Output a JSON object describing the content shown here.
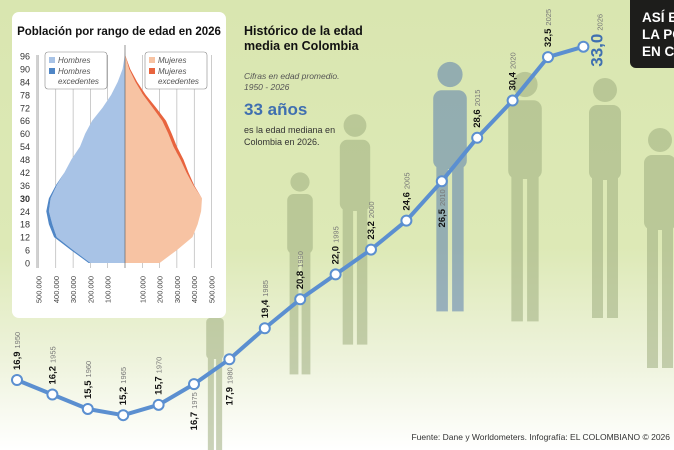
{
  "info": {
    "title": "Histórico de la edad media en Colombia",
    "subtitle": "Cifras en edad promedio. 1950 - 2026",
    "highlight": "33 años",
    "highlight_desc": "es la edad mediana en Colombia en 2026."
  },
  "corner_title": [
    "ASÍ E",
    "LA PO",
    "EN C"
  ],
  "source": "Fuente: Dane y Worldometers. Infografía: EL COLOMBIANO © 2026",
  "colors": {
    "line": "#5b8fd0",
    "male": "#a8c3e6",
    "male_excess": "#4f86c6",
    "female": "#f7c3a3",
    "female_excess": "#e8643e",
    "corner_bg": "#1d1d1b",
    "highlight": "#3f6fb0"
  },
  "chart_data": [
    {
      "type": "bar",
      "subtype": "population-pyramid",
      "title": "Población por rango de edad en 2026",
      "age_ticks": [
        "0",
        "6",
        "12",
        "18",
        "24",
        "30",
        "36",
        "42",
        "48",
        "54",
        "60",
        "66",
        "72",
        "78",
        "84",
        "90",
        "96"
      ],
      "x_tick_labels": [
        "500.000",
        "400.000",
        "300.000",
        "200.000",
        "100.000",
        "100.000",
        "200.000",
        "300.000",
        "400.000",
        "500.000"
      ],
      "xlim": [
        -500000,
        500000
      ],
      "legend": [
        "Hombres",
        "Hombres excedentes",
        "Mujeres",
        "Mujeres excedentes"
      ],
      "ages": [
        0,
        6,
        12,
        18,
        24,
        30,
        36,
        42,
        48,
        54,
        60,
        66,
        72,
        78,
        84,
        90,
        96
      ],
      "series": [
        {
          "name": "Hombres",
          "values": [
            200000,
            300000,
            395000,
            420000,
            440000,
            430000,
            395000,
            350000,
            310000,
            260000,
            230000,
            190000,
            130000,
            80000,
            42000,
            14000,
            2000
          ]
        },
        {
          "name": "Hombres excedentes",
          "values": [
            10000,
            12000,
            15000,
            20000,
            15000,
            10000,
            5000,
            0,
            0,
            0,
            0,
            0,
            0,
            0,
            0,
            0,
            0
          ]
        },
        {
          "name": "Mujeres",
          "values": [
            200000,
            300000,
            390000,
            420000,
            440000,
            445000,
            395000,
            355000,
            320000,
            280000,
            250000,
            215000,
            160000,
            105000,
            60000,
            24000,
            2000
          ]
        },
        {
          "name": "Mujeres excedentes",
          "values": [
            0,
            0,
            0,
            0,
            0,
            0,
            5000,
            12000,
            18000,
            20000,
            20000,
            22000,
            20000,
            15000,
            10000,
            6000,
            1000
          ]
        }
      ]
    },
    {
      "type": "line",
      "title": "Histórico de la edad media en Colombia",
      "x": [
        "1950",
        "1955",
        "1960",
        "1965",
        "1970",
        "1975",
        "1980",
        "1985",
        "1990",
        "1995",
        "2000",
        "2005",
        "2010",
        "2015",
        "2020",
        "2025",
        "2026"
      ],
      "values": [
        16.9,
        16.2,
        15.5,
        15.2,
        15.7,
        16.7,
        17.9,
        19.4,
        20.8,
        22.0,
        23.2,
        24.6,
        26.5,
        28.6,
        30.4,
        32.5,
        33.0
      ],
      "labels": [
        "16,9",
        "16,2",
        "15,5",
        "15,2",
        "15,7",
        "16,7",
        "17,9",
        "19,4",
        "20,8",
        "22,0",
        "23,2",
        "24,6",
        "26,5",
        "28,6",
        "30,4",
        "32,5",
        "33,0"
      ]
    }
  ]
}
